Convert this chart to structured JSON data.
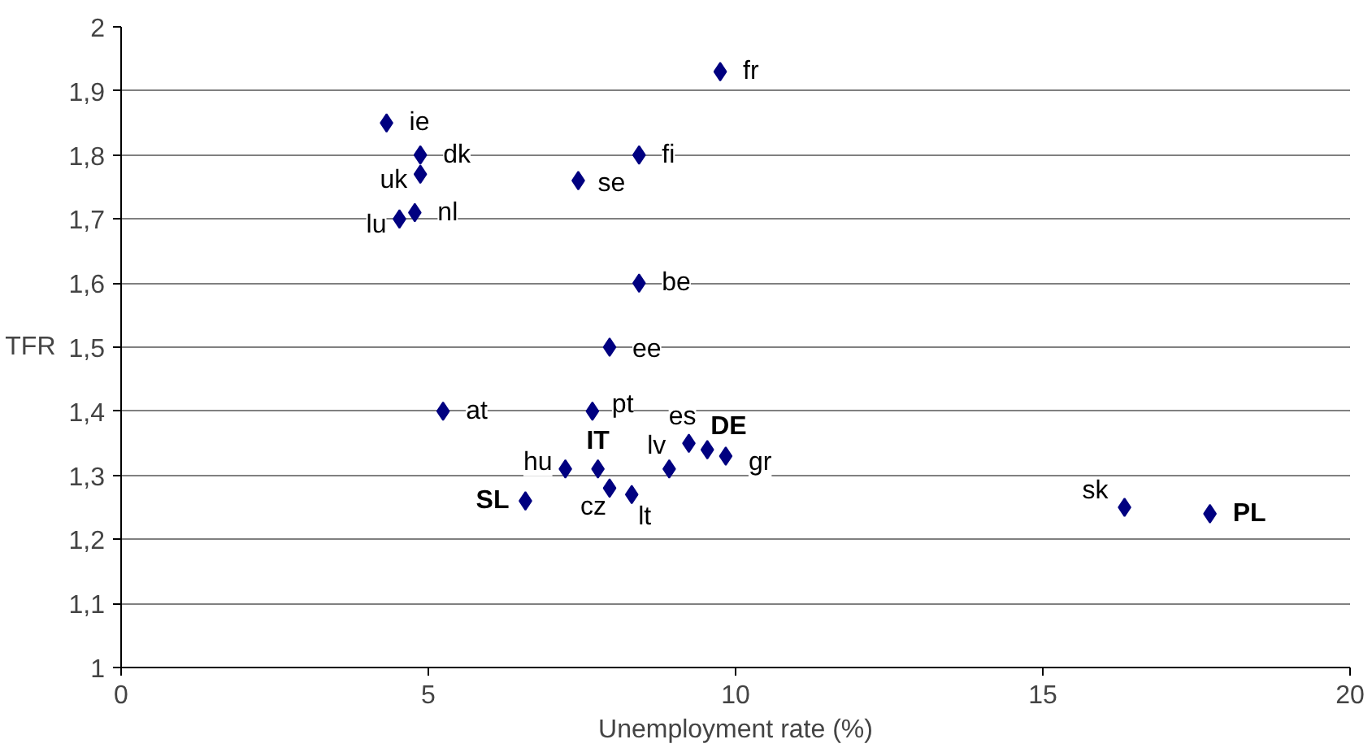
{
  "chart_data": {
    "type": "scatter",
    "xlabel": "Unemployment rate (%)",
    "ylabel": "TFR",
    "x": [
      9.75,
      4.32,
      4.87,
      4.87,
      4.78,
      4.53,
      8.43,
      7.44,
      8.43,
      7.95,
      5.24,
      7.67,
      7.76,
      7.23,
      7.95,
      8.31,
      6.58,
      8.92,
      9.24,
      9.54,
      9.84,
      16.33,
      17.72
    ],
    "series": [
      {
        "color": "#000080",
        "values": [
          1.93,
          1.85,
          1.8,
          1.77,
          1.71,
          1.7,
          1.8,
          1.76,
          1.6,
          1.5,
          1.4,
          1.4,
          1.31,
          1.31,
          1.28,
          1.27,
          1.26,
          1.31,
          1.35,
          1.34,
          1.33,
          1.25,
          1.24
        ]
      }
    ],
    "annotations": [
      {
        "text": "fr",
        "x": 9.75,
        "y": 1.93
      },
      {
        "text": "ie",
        "x": 4.32,
        "y": 1.85
      },
      {
        "text": "dk",
        "x": 4.87,
        "y": 1.8
      },
      {
        "text": "uk",
        "x": 4.87,
        "y": 1.77
      },
      {
        "text": "nl",
        "x": 4.78,
        "y": 1.71
      },
      {
        "text": "lu",
        "x": 4.53,
        "y": 1.7
      },
      {
        "text": "fi",
        "x": 8.43,
        "y": 1.8
      },
      {
        "text": "se",
        "x": 7.44,
        "y": 1.76
      },
      {
        "text": "be",
        "x": 8.43,
        "y": 1.6
      },
      {
        "text": "ee",
        "x": 7.95,
        "y": 1.5
      },
      {
        "text": "at",
        "x": 5.24,
        "y": 1.4
      },
      {
        "text": "pt",
        "x": 7.67,
        "y": 1.4
      },
      {
        "text": "IT",
        "x": 7.76,
        "y": 1.31
      },
      {
        "text": "hu",
        "x": 7.23,
        "y": 1.31
      },
      {
        "text": "cz",
        "x": 7.95,
        "y": 1.28
      },
      {
        "text": "lt",
        "x": 8.31,
        "y": 1.27
      },
      {
        "text": "SL",
        "x": 6.58,
        "y": 1.26
      },
      {
        "text": "lv",
        "x": 8.92,
        "y": 1.31
      },
      {
        "text": "es",
        "x": 9.24,
        "y": 1.35
      },
      {
        "text": "DE",
        "x": 9.54,
        "y": 1.34
      },
      {
        "text": "gr",
        "x": 9.84,
        "y": 1.33
      },
      {
        "text": "sk",
        "x": 16.33,
        "y": 1.25
      },
      {
        "text": "PL",
        "x": 17.72,
        "y": 1.24
      }
    ],
    "xlim": [
      0,
      20
    ],
    "xticks": [
      0,
      5,
      10,
      15,
      20
    ],
    "ylim": [
      1,
      2
    ],
    "yticks": [
      1,
      {
        "value": 1.1,
        "label": "1,1"
      },
      {
        "value": 1.2,
        "label": "1,2"
      },
      {
        "value": 1.3,
        "label": "1,3"
      },
      {
        "value": 1.4,
        "label": "1,4"
      },
      {
        "value": 1.5,
        "label": "1,5"
      },
      {
        "value": 1.6,
        "label": "1,6"
      },
      {
        "value": 1.7,
        "label": "1,7"
      },
      {
        "value": 1.8,
        "label": "1,8"
      },
      {
        "value": 1.9,
        "label": "1,9"
      },
      2
    ],
    "grid": "y",
    "marker": "diamond"
  }
}
